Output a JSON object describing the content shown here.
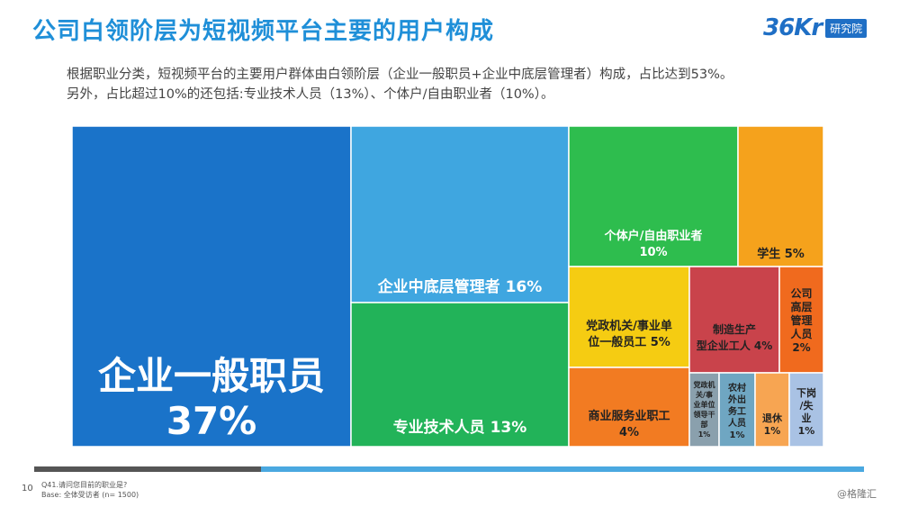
{
  "header": {
    "title": "公司白领阶层为短视频平台主要的用户构成",
    "logo_mark": "36Kr",
    "logo_text": "研究院"
  },
  "description": {
    "line1": "根据职业分类，短视频平台的主要用户群体由白领阶层（企业一般职员+企业中底层管理者）构成，占比达到53%。",
    "line2": "另外，占比超过10%的还包括:专业技术人员（13%）、个体户/自由职业者（10%）。"
  },
  "footer": {
    "page_number": "10",
    "question": "Q41.请问您目前的职业是?",
    "base": "Base: 全体受访者 (n= 1500)",
    "watermark": "@格隆汇"
  },
  "chart_data": {
    "type": "treemap",
    "title": "",
    "items": [
      {
        "label": "企业一般职员",
        "value": 37,
        "value_text": "37%",
        "color": "#1a73c9"
      },
      {
        "label": "企业中底层管理者",
        "value": 16,
        "value_text": "16%",
        "color": "#3fa6e0"
      },
      {
        "label": "专业技术人员",
        "value": 13,
        "value_text": "13%",
        "color": "#22b359"
      },
      {
        "label": "个体户/自由职业者",
        "value": 10,
        "value_text": "10%",
        "color": "#2ebd4e"
      },
      {
        "label": "学生",
        "value": 5,
        "value_text": "5%",
        "color": "#f5a21c"
      },
      {
        "label": "党政机关/事业单位一般员工",
        "value": 5,
        "value_text": "5%",
        "color": "#f5cc12"
      },
      {
        "label": "商业服务业职工",
        "value": 4,
        "value_text": "4%",
        "color": "#f27b22"
      },
      {
        "label": "制造生产型企业工人",
        "value": 4,
        "value_text": "4%",
        "color": "#c9434b"
      },
      {
        "label": "公司高层管理人员",
        "value": 2,
        "value_text": "2%",
        "color": "#f06a1e"
      },
      {
        "label": "党政机关/事业单位领导干部",
        "value": 1,
        "value_text": "1%",
        "color": "#8aa0ad"
      },
      {
        "label": "农村外出务工人员",
        "value": 1,
        "value_text": "1%",
        "color": "#6fa6c2"
      },
      {
        "label": "退休",
        "value": 1,
        "value_text": "1%",
        "color": "#f7a552"
      },
      {
        "label": "下岗/失业",
        "value": 1,
        "value_text": "1%",
        "color": "#a9c2e4"
      }
    ]
  }
}
